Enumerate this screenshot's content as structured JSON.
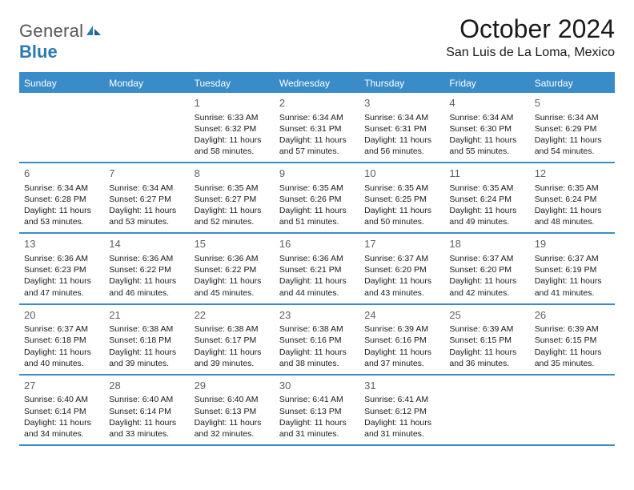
{
  "colors": {
    "header_bg": "#3a8cc9",
    "header_text": "#ffffff",
    "border": "#3a8cc9",
    "body_text": "#1a1a1a",
    "daynum": "#606060",
    "logo_gray": "#555555",
    "logo_blue": "#2a7ab0",
    "background": "#ffffff"
  },
  "typography": {
    "title_fontsize": 32,
    "subtitle_fontsize": 16,
    "dayheader_fontsize": 12,
    "daynum_fontsize": 13,
    "cell_fontsize": 10.5,
    "logo_fontsize": 22
  },
  "logo": {
    "general": "General",
    "blue": "Blue"
  },
  "title": "October 2024",
  "subtitle": "San Luis de La Loma, Mexico",
  "day_labels": [
    "Sunday",
    "Monday",
    "Tuesday",
    "Wednesday",
    "Thursday",
    "Friday",
    "Saturday"
  ],
  "weeks": [
    [
      {
        "day": "",
        "sunrise": "",
        "sunset": "",
        "daylight": ""
      },
      {
        "day": "",
        "sunrise": "",
        "sunset": "",
        "daylight": ""
      },
      {
        "day": "1",
        "sunrise": "Sunrise: 6:33 AM",
        "sunset": "Sunset: 6:32 PM",
        "daylight": "Daylight: 11 hours and 58 minutes."
      },
      {
        "day": "2",
        "sunrise": "Sunrise: 6:34 AM",
        "sunset": "Sunset: 6:31 PM",
        "daylight": "Daylight: 11 hours and 57 minutes."
      },
      {
        "day": "3",
        "sunrise": "Sunrise: 6:34 AM",
        "sunset": "Sunset: 6:31 PM",
        "daylight": "Daylight: 11 hours and 56 minutes."
      },
      {
        "day": "4",
        "sunrise": "Sunrise: 6:34 AM",
        "sunset": "Sunset: 6:30 PM",
        "daylight": "Daylight: 11 hours and 55 minutes."
      },
      {
        "day": "5",
        "sunrise": "Sunrise: 6:34 AM",
        "sunset": "Sunset: 6:29 PM",
        "daylight": "Daylight: 11 hours and 54 minutes."
      }
    ],
    [
      {
        "day": "6",
        "sunrise": "Sunrise: 6:34 AM",
        "sunset": "Sunset: 6:28 PM",
        "daylight": "Daylight: 11 hours and 53 minutes."
      },
      {
        "day": "7",
        "sunrise": "Sunrise: 6:34 AM",
        "sunset": "Sunset: 6:27 PM",
        "daylight": "Daylight: 11 hours and 53 minutes."
      },
      {
        "day": "8",
        "sunrise": "Sunrise: 6:35 AM",
        "sunset": "Sunset: 6:27 PM",
        "daylight": "Daylight: 11 hours and 52 minutes."
      },
      {
        "day": "9",
        "sunrise": "Sunrise: 6:35 AM",
        "sunset": "Sunset: 6:26 PM",
        "daylight": "Daylight: 11 hours and 51 minutes."
      },
      {
        "day": "10",
        "sunrise": "Sunrise: 6:35 AM",
        "sunset": "Sunset: 6:25 PM",
        "daylight": "Daylight: 11 hours and 50 minutes."
      },
      {
        "day": "11",
        "sunrise": "Sunrise: 6:35 AM",
        "sunset": "Sunset: 6:24 PM",
        "daylight": "Daylight: 11 hours and 49 minutes."
      },
      {
        "day": "12",
        "sunrise": "Sunrise: 6:35 AM",
        "sunset": "Sunset: 6:24 PM",
        "daylight": "Daylight: 11 hours and 48 minutes."
      }
    ],
    [
      {
        "day": "13",
        "sunrise": "Sunrise: 6:36 AM",
        "sunset": "Sunset: 6:23 PM",
        "daylight": "Daylight: 11 hours and 47 minutes."
      },
      {
        "day": "14",
        "sunrise": "Sunrise: 6:36 AM",
        "sunset": "Sunset: 6:22 PM",
        "daylight": "Daylight: 11 hours and 46 minutes."
      },
      {
        "day": "15",
        "sunrise": "Sunrise: 6:36 AM",
        "sunset": "Sunset: 6:22 PM",
        "daylight": "Daylight: 11 hours and 45 minutes."
      },
      {
        "day": "16",
        "sunrise": "Sunrise: 6:36 AM",
        "sunset": "Sunset: 6:21 PM",
        "daylight": "Daylight: 11 hours and 44 minutes."
      },
      {
        "day": "17",
        "sunrise": "Sunrise: 6:37 AM",
        "sunset": "Sunset: 6:20 PM",
        "daylight": "Daylight: 11 hours and 43 minutes."
      },
      {
        "day": "18",
        "sunrise": "Sunrise: 6:37 AM",
        "sunset": "Sunset: 6:20 PM",
        "daylight": "Daylight: 11 hours and 42 minutes."
      },
      {
        "day": "19",
        "sunrise": "Sunrise: 6:37 AM",
        "sunset": "Sunset: 6:19 PM",
        "daylight": "Daylight: 11 hours and 41 minutes."
      }
    ],
    [
      {
        "day": "20",
        "sunrise": "Sunrise: 6:37 AM",
        "sunset": "Sunset: 6:18 PM",
        "daylight": "Daylight: 11 hours and 40 minutes."
      },
      {
        "day": "21",
        "sunrise": "Sunrise: 6:38 AM",
        "sunset": "Sunset: 6:18 PM",
        "daylight": "Daylight: 11 hours and 39 minutes."
      },
      {
        "day": "22",
        "sunrise": "Sunrise: 6:38 AM",
        "sunset": "Sunset: 6:17 PM",
        "daylight": "Daylight: 11 hours and 39 minutes."
      },
      {
        "day": "23",
        "sunrise": "Sunrise: 6:38 AM",
        "sunset": "Sunset: 6:16 PM",
        "daylight": "Daylight: 11 hours and 38 minutes."
      },
      {
        "day": "24",
        "sunrise": "Sunrise: 6:39 AM",
        "sunset": "Sunset: 6:16 PM",
        "daylight": "Daylight: 11 hours and 37 minutes."
      },
      {
        "day": "25",
        "sunrise": "Sunrise: 6:39 AM",
        "sunset": "Sunset: 6:15 PM",
        "daylight": "Daylight: 11 hours and 36 minutes."
      },
      {
        "day": "26",
        "sunrise": "Sunrise: 6:39 AM",
        "sunset": "Sunset: 6:15 PM",
        "daylight": "Daylight: 11 hours and 35 minutes."
      }
    ],
    [
      {
        "day": "27",
        "sunrise": "Sunrise: 6:40 AM",
        "sunset": "Sunset: 6:14 PM",
        "daylight": "Daylight: 11 hours and 34 minutes."
      },
      {
        "day": "28",
        "sunrise": "Sunrise: 6:40 AM",
        "sunset": "Sunset: 6:14 PM",
        "daylight": "Daylight: 11 hours and 33 minutes."
      },
      {
        "day": "29",
        "sunrise": "Sunrise: 6:40 AM",
        "sunset": "Sunset: 6:13 PM",
        "daylight": "Daylight: 11 hours and 32 minutes."
      },
      {
        "day": "30",
        "sunrise": "Sunrise: 6:41 AM",
        "sunset": "Sunset: 6:13 PM",
        "daylight": "Daylight: 11 hours and 31 minutes."
      },
      {
        "day": "31",
        "sunrise": "Sunrise: 6:41 AM",
        "sunset": "Sunset: 6:12 PM",
        "daylight": "Daylight: 11 hours and 31 minutes."
      },
      {
        "day": "",
        "sunrise": "",
        "sunset": "",
        "daylight": ""
      },
      {
        "day": "",
        "sunrise": "",
        "sunset": "",
        "daylight": ""
      }
    ]
  ]
}
